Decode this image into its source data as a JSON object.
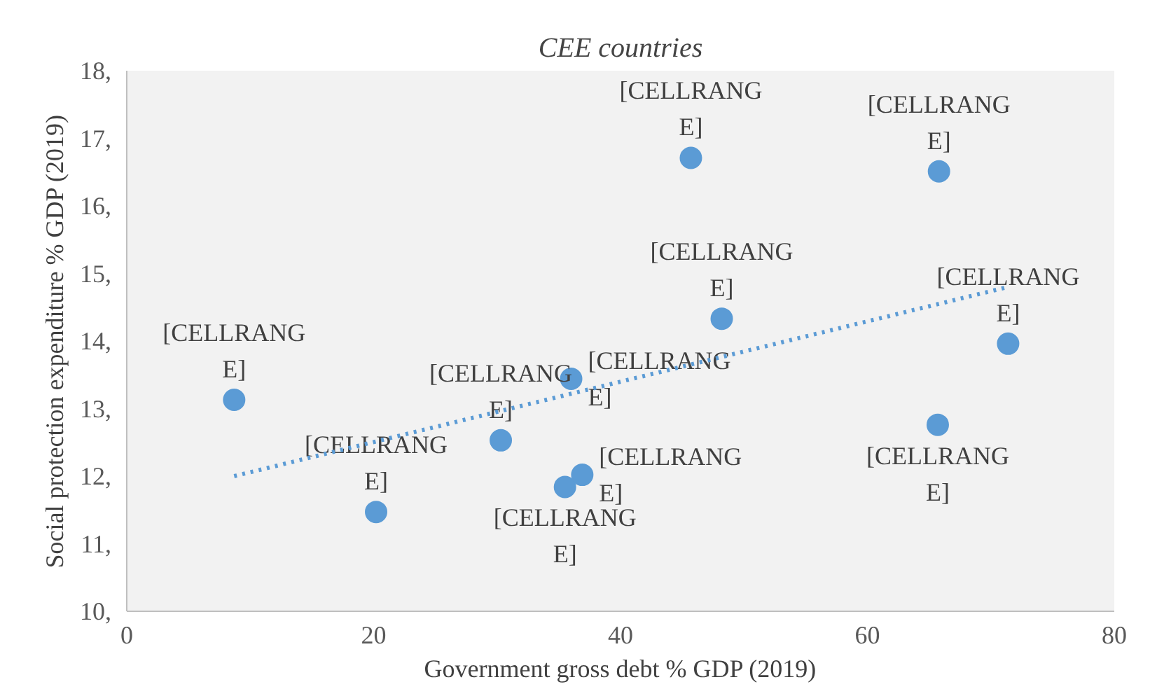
{
  "chart_data": {
    "type": "scatter",
    "title": "CEE countries",
    "xlabel": "Government gross debt % GDP (2019)",
    "ylabel": "Social protection expenditure % GDP (2019)",
    "xlim": [
      0,
      80
    ],
    "xticks": [
      0,
      20,
      40,
      60,
      80
    ],
    "ylim": [
      10,
      18
    ],
    "yticks": [
      {
        "value": 10,
        "label": "10,"
      },
      {
        "value": 11,
        "label": "11,"
      },
      {
        "value": 12,
        "label": "12,"
      },
      {
        "value": 13,
        "label": "13,"
      },
      {
        "value": 14,
        "label": "14,"
      },
      {
        "value": 15,
        "label": "15,"
      },
      {
        "value": 16,
        "label": "16,"
      },
      {
        "value": 17,
        "label": "17,"
      },
      {
        "value": 18,
        "label": "18,"
      }
    ],
    "grid": false,
    "marker": "circle",
    "series": [
      {
        "color": "#5b9bd5",
        "x": [
          8.7,
          20.2,
          30.3,
          36.0,
          35.5,
          36.9,
          45.7,
          48.2,
          65.8,
          65.7,
          71.4
        ],
        "values": [
          13.13,
          11.47,
          12.53,
          13.44,
          11.84,
          12.02,
          16.71,
          14.33,
          16.51,
          12.76,
          13.96
        ],
        "value_labels": [
          "[CELLRANG\nE]",
          "[CELLRANG\nE]",
          "[CELLRANG\nE]",
          "[CELLRANG\nE]",
          "[CELLRANG\nE]",
          "[CELLRANG\nE]",
          "[CELLRANG\nE]",
          "[CELLRANG\nE]",
          "[CELLRANG\nE]",
          "[CELLRANG\nE]",
          "[CELLRANG\nE]"
        ]
      },
      {
        "type": "line",
        "color": "#5b9bd5",
        "line_style": "dotted",
        "marker": "none",
        "x": [
          8.7,
          71.4
        ],
        "values": [
          12.0,
          14.8
        ]
      }
    ]
  }
}
